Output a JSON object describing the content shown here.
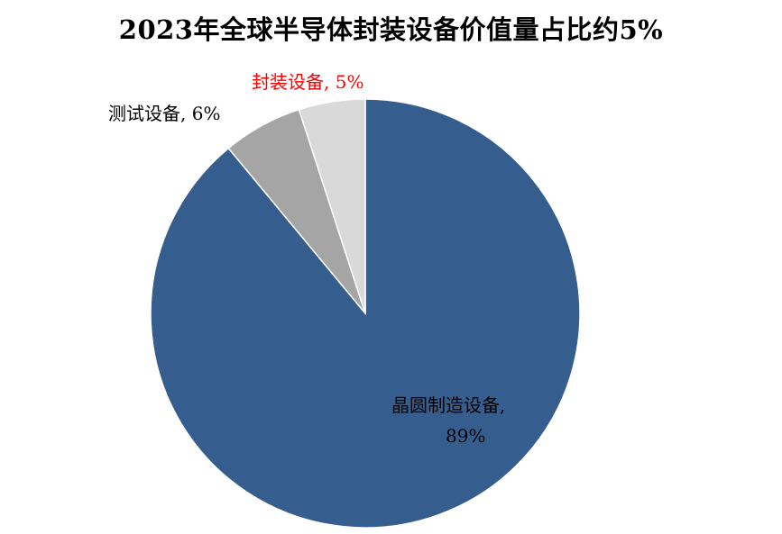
{
  "chart_data": {
    "type": "pie",
    "title": "2023年全球半导体封装设备价值量占比约5%",
    "start": "top",
    "direction": "clockwise",
    "slices": [
      {
        "label": "晶圆制造设备",
        "value": 89,
        "data_label_line1": "晶圆制造设备,",
        "data_label_line2": "89%",
        "color": "#355E8E",
        "label_color": "#000000"
      },
      {
        "label": "测试设备",
        "value": 6,
        "data_label_line1": "测试设备, 6%",
        "color": "#A5A5A5",
        "label_color": "#000000"
      },
      {
        "label": "封装设备",
        "value": 5,
        "data_label_line1": "封装设备, 5%",
        "color": "#D9D9D9",
        "label_color": "#FF0000"
      }
    ],
    "legend": "none"
  }
}
